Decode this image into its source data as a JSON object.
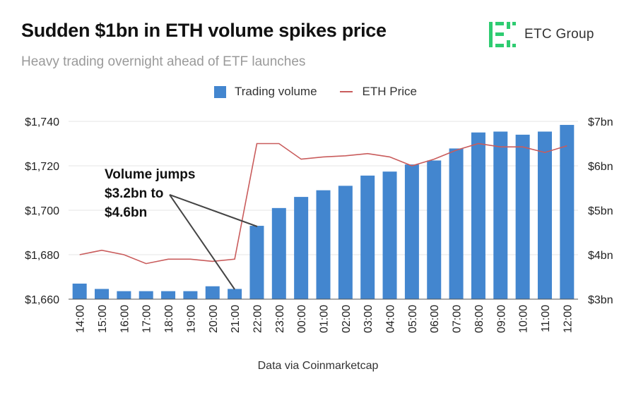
{
  "header": {
    "title": "Sudden $1bn in ETH volume spikes price",
    "subtitle": "Heavy trading overnight ahead of ETF launches"
  },
  "brand": {
    "name": "ETC Group",
    "logo_color": "#2ecc71",
    "icon": "etc-group-logo-icon"
  },
  "footer": {
    "source": "Data via Coinmarketcap"
  },
  "annotation": {
    "lines": [
      "Volume jumps",
      "$3.2bn to",
      "$4.6bn"
    ]
  },
  "chart_data": {
    "type": "bar+line",
    "title": "Sudden $1bn in ETH volume spikes price",
    "categories": [
      "14:00",
      "15:00",
      "16:00",
      "17:00",
      "18:00",
      "19:00",
      "20:00",
      "21:00",
      "22:00",
      "23:00",
      "00:00",
      "01:00",
      "02:00",
      "03:00",
      "04:00",
      "05:00",
      "06:00",
      "07:00",
      "08:00",
      "09:00",
      "10:00",
      "11:00",
      "12:00"
    ],
    "series": [
      {
        "name": "Trading volume",
        "type": "bar",
        "axis": "right",
        "color": "#4386cf",
        "values": [
          3.35,
          3.23,
          3.18,
          3.18,
          3.18,
          3.18,
          3.29,
          3.23,
          4.65,
          5.05,
          5.3,
          5.45,
          5.55,
          5.78,
          5.87,
          6.03,
          6.12,
          6.39,
          6.75,
          6.77,
          6.7,
          6.77,
          6.92
        ]
      },
      {
        "name": "ETH Price",
        "type": "line",
        "axis": "left",
        "color": "#c95c5c",
        "values": [
          1680,
          1682,
          1680,
          1676,
          1678,
          1678,
          1677,
          1678,
          1730,
          1730,
          1723,
          1724,
          1724.5,
          1725.5,
          1724,
          1720,
          1723,
          1727,
          1730,
          1728.5,
          1728.5,
          1726,
          1729
        ]
      }
    ],
    "legend": [
      "Trading volume",
      "ETH Price"
    ],
    "legend_position": "top-center",
    "y_left": {
      "ticks": [
        1660,
        1680,
        1700,
        1720,
        1740
      ],
      "tick_labels": [
        "$1,660",
        "$1,680",
        "$1,700",
        "$1,720",
        "$1,740"
      ],
      "range": [
        1660,
        1740
      ]
    },
    "y_right": {
      "ticks": [
        3,
        4,
        5,
        6,
        7
      ],
      "tick_labels": [
        "$3bn",
        "$4bn",
        "$5bn",
        "$6bn",
        "$7bn"
      ],
      "range": [
        3,
        7
      ]
    },
    "grid": true
  }
}
